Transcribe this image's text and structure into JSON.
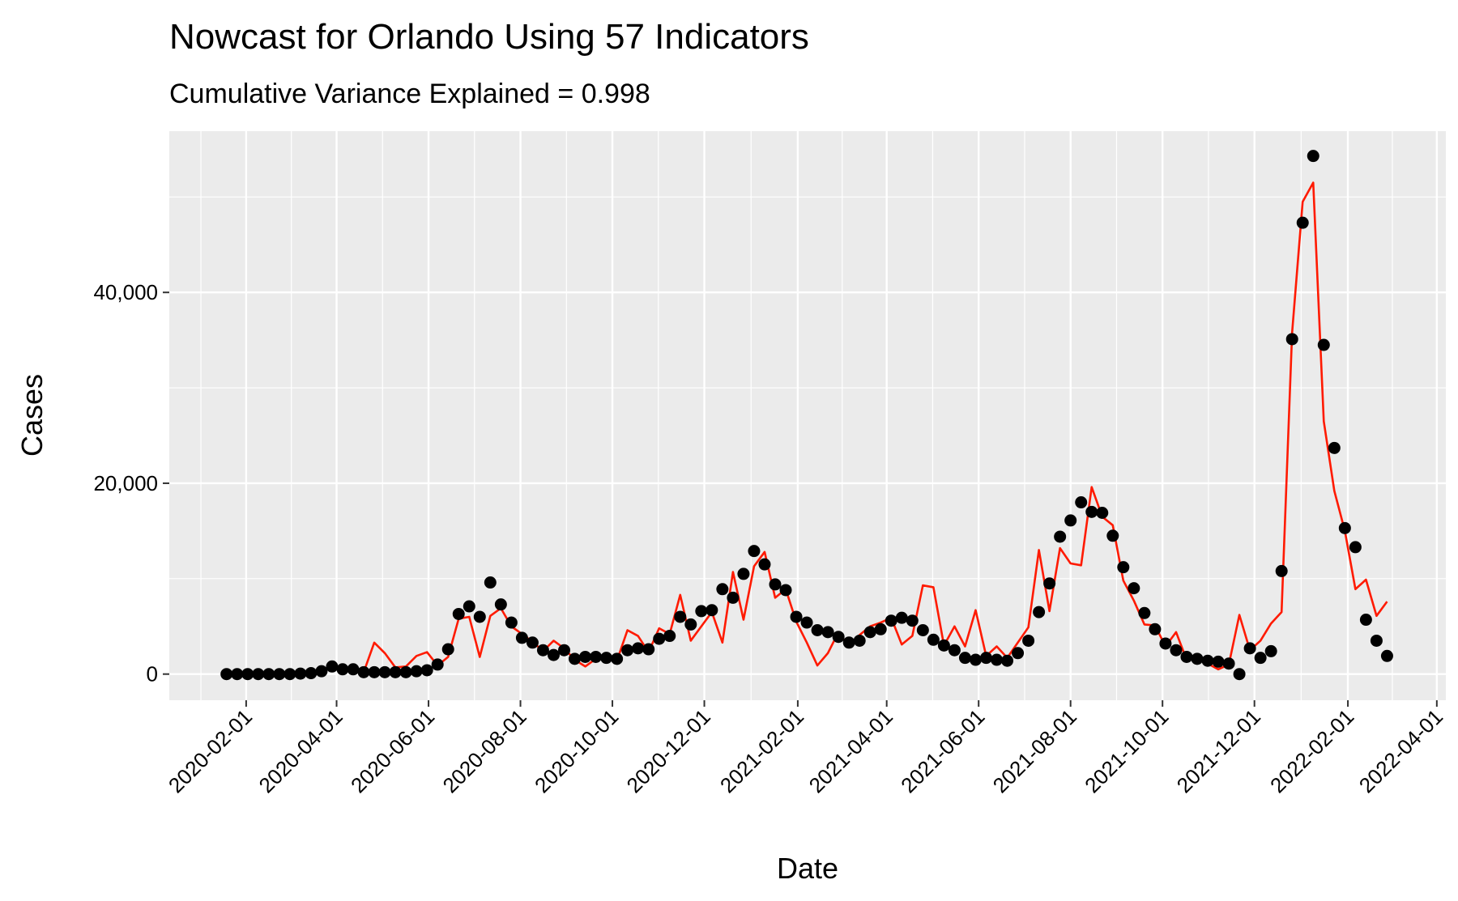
{
  "chart_data": {
    "type": "line",
    "title": "Nowcast for Orlando Using 57 Indicators",
    "subtitle": "Cumulative Variance Explained = 0.998",
    "x_label": "Date",
    "y_label": "Cases",
    "x": [
      "2020-01-19",
      "2020-01-26",
      "2020-02-02",
      "2020-02-09",
      "2020-02-16",
      "2020-02-23",
      "2020-03-01",
      "2020-03-08",
      "2020-03-15",
      "2020-03-22",
      "2020-03-29",
      "2020-04-05",
      "2020-04-12",
      "2020-04-19",
      "2020-04-26",
      "2020-05-03",
      "2020-05-10",
      "2020-05-17",
      "2020-05-24",
      "2020-05-31",
      "2020-06-07",
      "2020-06-14",
      "2020-06-21",
      "2020-06-28",
      "2020-07-05",
      "2020-07-12",
      "2020-07-19",
      "2020-07-26",
      "2020-08-02",
      "2020-08-09",
      "2020-08-16",
      "2020-08-23",
      "2020-08-30",
      "2020-09-06",
      "2020-09-13",
      "2020-09-20",
      "2020-09-27",
      "2020-10-04",
      "2020-10-11",
      "2020-10-18",
      "2020-10-25",
      "2020-11-01",
      "2020-11-08",
      "2020-11-15",
      "2020-11-22",
      "2020-11-29",
      "2020-12-06",
      "2020-12-13",
      "2020-12-20",
      "2020-12-27",
      "2021-01-03",
      "2021-01-10",
      "2021-01-17",
      "2021-01-24",
      "2021-01-31",
      "2021-02-07",
      "2021-02-14",
      "2021-02-21",
      "2021-02-28",
      "2021-03-07",
      "2021-03-14",
      "2021-03-21",
      "2021-03-28",
      "2021-04-04",
      "2021-04-11",
      "2021-04-18",
      "2021-04-25",
      "2021-05-02",
      "2021-05-09",
      "2021-05-16",
      "2021-05-23",
      "2021-05-30",
      "2021-06-06",
      "2021-06-13",
      "2021-06-20",
      "2021-06-27",
      "2021-07-04",
      "2021-07-11",
      "2021-07-18",
      "2021-07-25",
      "2021-08-01",
      "2021-08-08",
      "2021-08-15",
      "2021-08-22",
      "2021-08-29",
      "2021-09-05",
      "2021-09-12",
      "2021-09-19",
      "2021-09-26",
      "2021-10-03",
      "2021-10-10",
      "2021-10-17",
      "2021-10-24",
      "2021-10-31",
      "2021-11-07",
      "2021-11-14",
      "2021-11-21",
      "2021-11-28",
      "2021-12-05",
      "2021-12-12",
      "2021-12-19",
      "2021-12-26",
      "2022-01-02",
      "2022-01-09",
      "2022-01-16",
      "2022-01-23",
      "2022-01-30",
      "2022-02-06",
      "2022-02-13",
      "2022-02-20",
      "2022-02-27"
    ],
    "series": [
      {
        "kind": "line",
        "color": "#ff1a00",
        "values": [
          0,
          0,
          0,
          0,
          0,
          0,
          0,
          0,
          100,
          300,
          700,
          500,
          700,
          200,
          3300,
          2200,
          700,
          800,
          1900,
          2300,
          900,
          1800,
          5800,
          6000,
          1800,
          6100,
          6900,
          5000,
          4200,
          3400,
          2400,
          3500,
          2700,
          1500,
          800,
          1600,
          2000,
          1400,
          4600,
          4000,
          2300,
          4800,
          4200,
          8300,
          3500,
          5000,
          6500,
          3300,
          10700,
          5700,
          11300,
          12800,
          8000,
          8900,
          5500,
          3300,
          900,
          2200,
          4400,
          2800,
          4100,
          5000,
          5400,
          5900,
          3100,
          4000,
          9300,
          9100,
          3000,
          5000,
          2900,
          6700,
          1900,
          2900,
          1700,
          3300,
          4900,
          13000,
          6600,
          13200,
          11600,
          11400,
          19600,
          16500,
          15600,
          9800,
          7700,
          5200,
          5100,
          2900,
          4400,
          1500,
          2000,
          1100,
          500,
          1000,
          6200,
          2500,
          3500,
          5300,
          6500,
          35800,
          49500,
          51500,
          26500,
          19200,
          15000,
          8900,
          9900,
          6100,
          7600
        ]
      },
      {
        "kind": "point",
        "color": "#000000",
        "values": [
          0,
          0,
          0,
          0,
          0,
          0,
          0,
          50,
          100,
          300,
          800,
          500,
          500,
          200,
          200,
          200,
          200,
          200,
          300,
          400,
          1000,
          2600,
          6300,
          7100,
          6000,
          9600,
          7300,
          5400,
          3800,
          3300,
          2500,
          2000,
          2500,
          1600,
          1800,
          1800,
          1700,
          1600,
          2500,
          2700,
          2600,
          3700,
          4000,
          6000,
          5200,
          6600,
          6700,
          8900,
          8000,
          10500,
          12900,
          11500,
          9400,
          8800,
          6000,
          5400,
          4600,
          4400,
          3900,
          3300,
          3500,
          4400,
          4700,
          5600,
          5900,
          5600,
          4600,
          3600,
          3000,
          2500,
          1700,
          1500,
          1700,
          1500,
          1400,
          2200,
          3500,
          6500,
          9500,
          14400,
          16100,
          18000,
          17000,
          16900,
          14500,
          11200,
          9000,
          6400,
          4700,
          3200,
          2500,
          1800,
          1600,
          1400,
          1300,
          1100,
          0,
          2700,
          1700,
          2400,
          10800,
          35100,
          47300,
          54300,
          34500,
          23700,
          15300,
          13300,
          5700,
          3500,
          1900
        ]
      }
    ],
    "xlim": [
      "2019-12-12",
      "2022-04-07"
    ],
    "xticks": [
      "2020-02-01",
      "2020-04-01",
      "2020-06-01",
      "2020-08-01",
      "2020-10-01",
      "2020-12-01",
      "2021-02-01",
      "2021-04-01",
      "2021-06-01",
      "2021-08-01",
      "2021-10-01",
      "2021-12-01",
      "2022-02-01",
      "2022-04-01"
    ],
    "ylim": [
      -2740,
      56900
    ],
    "yticks": [
      0,
      {
        "value": 20000,
        "label": "20,000"
      },
      {
        "value": 40000,
        "label": "40,000"
      }
    ],
    "grid": true
  }
}
